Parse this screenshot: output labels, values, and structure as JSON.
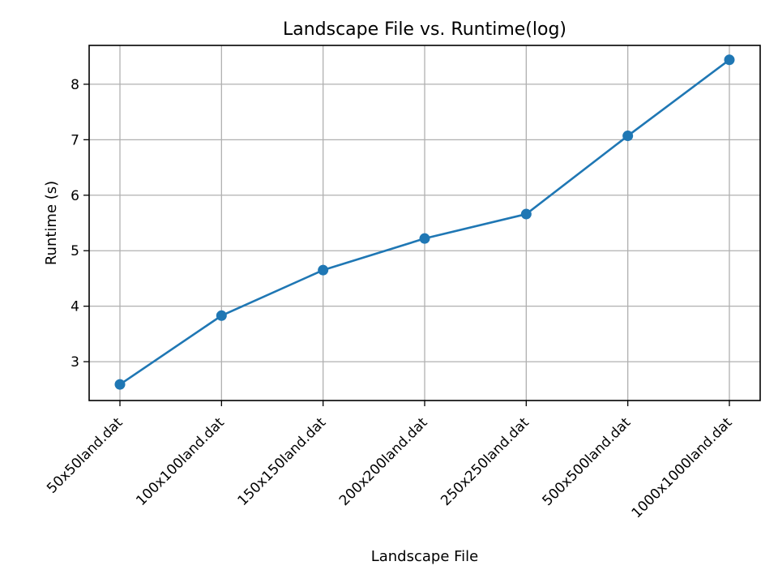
{
  "chart_data": {
    "type": "line",
    "title": "Landscape File vs. Runtime(log)",
    "xlabel": "Landscape File",
    "ylabel": "Runtime (s)",
    "categories": [
      "50x50land.dat",
      "100x100land.dat",
      "150x150land.dat",
      "200x200land.dat",
      "250x250land.dat",
      "500x500land.dat",
      "1000x1000land.dat"
    ],
    "series": [
      {
        "values": [
          2.59,
          3.83,
          4.65,
          5.22,
          5.66,
          7.07,
          8.44
        ]
      }
    ],
    "y_ticks": [
      3,
      4,
      5,
      6,
      7,
      8
    ],
    "ylim": [
      2.3,
      8.7
    ],
    "grid": true,
    "legend": "none",
    "markers": true,
    "colors": {
      "line": "#1f77b4",
      "grid": "#b0b0b0",
      "axes": "#000000"
    }
  }
}
